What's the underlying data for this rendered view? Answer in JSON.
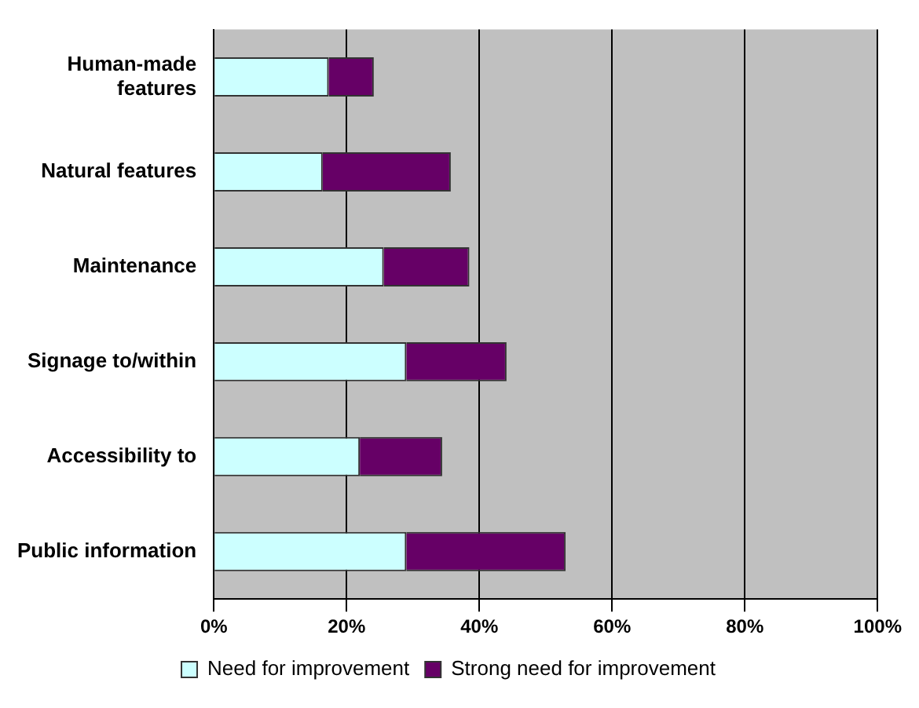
{
  "chart_data": {
    "type": "bar",
    "orientation": "horizontal",
    "stacked": true,
    "categories": [
      "Human-made features",
      "Natural features",
      "Maintenance",
      "Signage to/within",
      "Accessibility to",
      "Public information"
    ],
    "series": [
      {
        "name": "Need for improvement",
        "color": "#ccffff",
        "values": [
          17.3,
          16.4,
          25.6,
          29.0,
          22.0,
          29.0
        ]
      },
      {
        "name": "Strong need for improvement",
        "color": "#660066",
        "values": [
          6.8,
          19.3,
          12.9,
          15.1,
          12.4,
          24.0
        ]
      }
    ],
    "xlim": [
      0,
      100
    ],
    "xticks": [
      {
        "value": 0,
        "label": "0%"
      },
      {
        "value": 20,
        "label": "20%"
      },
      {
        "value": 40,
        "label": "40%"
      },
      {
        "value": 60,
        "label": "60%"
      },
      {
        "value": 80,
        "label": "80%"
      },
      {
        "value": 100,
        "label": "100%"
      }
    ],
    "grid": "x",
    "legend": "bottom"
  }
}
